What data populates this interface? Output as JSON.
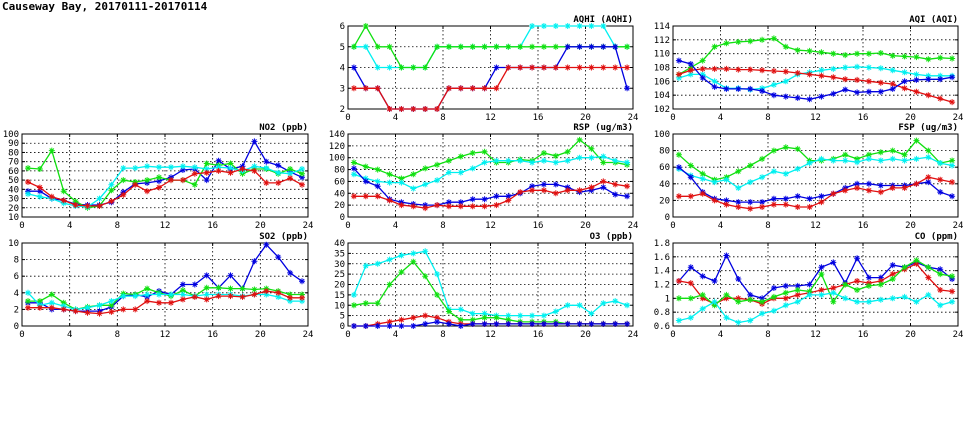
{
  "page_title": "Causeway Bay, 20170111-20170114",
  "colors": {
    "blue": "#0000e0",
    "green": "#10e010",
    "cyan": "#00f0f0",
    "red": "#e01010"
  },
  "chart_data": [
    {
      "id": "no2",
      "type": "line",
      "title": "NO2 (ppb)",
      "xlim": [
        0,
        24
      ],
      "xticks": [
        0,
        4,
        8,
        12,
        16,
        20,
        24
      ],
      "ylim": [
        10,
        100
      ],
      "yticks": [
        10,
        20,
        30,
        40,
        50,
        60,
        70,
        80,
        90,
        100
      ],
      "series": [
        {
          "color": "blue",
          "values": [
            38,
            38,
            30,
            28,
            24,
            23,
            23,
            26,
            37,
            46,
            47,
            49,
            53,
            61,
            62,
            50,
            71,
            62,
            65,
            92,
            70,
            66,
            59,
            53
          ]
        },
        {
          "color": "green",
          "values": [
            63,
            62,
            82,
            38,
            27,
            20,
            22,
            39,
            50,
            48,
            50,
            53,
            50,
            50,
            45,
            68,
            66,
            68,
            57,
            62,
            62,
            57,
            62,
            57
          ]
        },
        {
          "color": "cyan",
          "values": [
            35,
            32,
            30,
            25,
            22,
            21,
            30,
            45,
            63,
            63,
            65,
            64,
            64,
            65,
            64,
            62,
            64,
            63,
            60,
            65,
            63,
            58,
            57,
            62
          ]
        },
        {
          "color": "red",
          "values": [
            48,
            42,
            32,
            28,
            23,
            22,
            22,
            27,
            34,
            45,
            38,
            42,
            50,
            50,
            57,
            58,
            60,
            58,
            62,
            60,
            47,
            47,
            52,
            45
          ]
        }
      ]
    },
    {
      "id": "so2",
      "type": "line",
      "title": "SO2 (ppb)",
      "xlim": [
        0,
        24
      ],
      "xticks": [
        0,
        4,
        8,
        12,
        16,
        20,
        24
      ],
      "ylim": [
        0,
        10
      ],
      "yticks": [
        0,
        2,
        4,
        6,
        8,
        10
      ],
      "series": [
        {
          "color": "blue",
          "values": [
            2.8,
            2.8,
            2.0,
            2.0,
            1.8,
            1.8,
            1.8,
            2.3,
            3.6,
            3.8,
            3.5,
            4.2,
            3.8,
            5.0,
            5.0,
            6.1,
            4.6,
            6.1,
            4.5,
            7.8,
            9.8,
            8.3,
            6.4,
            5.4
          ]
        },
        {
          "color": "green",
          "values": [
            3.0,
            3.0,
            3.8,
            2.8,
            2.0,
            2.3,
            2.5,
            2.5,
            3.9,
            3.8,
            4.5,
            4.0,
            3.6,
            4.3,
            3.6,
            4.6,
            4.6,
            4.5,
            4.5,
            4.4,
            4.5,
            4.2,
            3.8,
            3.8
          ]
        },
        {
          "color": "cyan",
          "values": [
            4.0,
            2.5,
            2.8,
            2.4,
            2.0,
            2.2,
            2.5,
            3.0,
            3.6,
            3.6,
            3.8,
            3.8,
            3.8,
            3.8,
            3.6,
            3.8,
            3.8,
            3.8,
            3.6,
            3.8,
            3.8,
            3.5,
            3.0,
            3.0
          ]
        },
        {
          "color": "red",
          "values": [
            2.2,
            2.2,
            2.2,
            2.0,
            1.8,
            1.6,
            1.5,
            1.7,
            2.0,
            2.0,
            3.0,
            2.8,
            2.8,
            3.2,
            3.5,
            3.2,
            3.6,
            3.6,
            3.5,
            3.8,
            4.2,
            4.0,
            3.4,
            3.4
          ]
        }
      ]
    },
    {
      "id": "aqhi",
      "type": "line",
      "title": "AQHI (AQHI)",
      "xlim": [
        0,
        24
      ],
      "xticks": [
        0,
        4,
        8,
        12,
        16,
        20,
        24
      ],
      "ylim": [
        2,
        6
      ],
      "yticks": [
        2,
        3,
        4,
        5,
        6
      ],
      "series": [
        {
          "color": "cyan",
          "values": [
            5,
            5,
            4,
            4,
            4,
            4,
            4,
            5,
            5,
            5,
            5,
            5,
            5,
            5,
            5,
            6,
            6,
            6,
            6,
            6,
            6,
            6,
            5,
            5
          ]
        },
        {
          "color": "green",
          "values": [
            5,
            6,
            5,
            5,
            4,
            4,
            4,
            5,
            5,
            5,
            5,
            5,
            5,
            5,
            5,
            5,
            5,
            5,
            5,
            5,
            5,
            5,
            5,
            5
          ]
        },
        {
          "color": "blue",
          "values": [
            4,
            3,
            3,
            2,
            2,
            2,
            2,
            2,
            3,
            3,
            3,
            3,
            4,
            4,
            4,
            4,
            4,
            4,
            5,
            5,
            5,
            5,
            5,
            3
          ]
        },
        {
          "color": "red",
          "values": [
            3,
            3,
            3,
            2,
            2,
            2,
            2,
            2,
            3,
            3,
            3,
            3,
            3,
            4,
            4,
            4,
            4,
            4,
            4,
            4,
            4,
            4,
            4,
            4
          ]
        }
      ]
    },
    {
      "id": "rsp",
      "type": "line",
      "title": "RSP (ug/m3)",
      "xlim": [
        0,
        24
      ],
      "xticks": [
        0,
        4,
        8,
        12,
        16,
        20,
        24
      ],
      "ylim": [
        0,
        140
      ],
      "yticks": [
        0,
        20,
        40,
        60,
        80,
        100,
        120,
        140
      ],
      "series": [
        {
          "color": "green",
          "values": [
            92,
            85,
            80,
            72,
            65,
            72,
            82,
            88,
            95,
            102,
            108,
            110,
            92,
            92,
            97,
            95,
            108,
            103,
            110,
            130,
            115,
            92,
            92,
            88
          ]
        },
        {
          "color": "cyan",
          "values": [
            72,
            65,
            60,
            58,
            58,
            48,
            55,
            62,
            75,
            75,
            82,
            92,
            95,
            95,
            95,
            92,
            95,
            92,
            95,
            100,
            100,
            102,
            95,
            92
          ]
        },
        {
          "color": "blue",
          "values": [
            82,
            60,
            52,
            30,
            25,
            22,
            20,
            20,
            25,
            25,
            30,
            30,
            35,
            35,
            40,
            52,
            55,
            55,
            50,
            42,
            45,
            50,
            38,
            35
          ]
        },
        {
          "color": "red",
          "values": [
            35,
            35,
            35,
            28,
            20,
            18,
            15,
            20,
            18,
            18,
            18,
            18,
            20,
            28,
            42,
            45,
            45,
            40,
            45,
            45,
            50,
            60,
            55,
            52
          ]
        }
      ]
    },
    {
      "id": "o3",
      "type": "line",
      "title": "O3 (ppb)",
      "xlim": [
        0,
        24
      ],
      "xticks": [
        0,
        4,
        8,
        12,
        16,
        20,
        24
      ],
      "ylim": [
        0,
        40
      ],
      "yticks": [
        0,
        5,
        10,
        15,
        20,
        25,
        30,
        35,
        40
      ],
      "series": [
        {
          "color": "cyan",
          "values": [
            15,
            29,
            30,
            32,
            34,
            35,
            36,
            25,
            8,
            8,
            6,
            6,
            5,
            5,
            5,
            5,
            5,
            7,
            10,
            10,
            6,
            11,
            12,
            10
          ]
        },
        {
          "color": "green",
          "values": [
            10,
            11,
            11,
            20,
            26,
            31,
            24,
            15,
            7,
            3,
            3,
            4,
            4,
            3,
            2,
            2,
            2,
            2,
            1,
            1,
            1,
            1,
            1,
            1
          ]
        },
        {
          "color": "red",
          "values": [
            0,
            0,
            1,
            2,
            3,
            4,
            5,
            4,
            2,
            1,
            1,
            1,
            1,
            1,
            1,
            1,
            1,
            1,
            1,
            1,
            1,
            1,
            1,
            1
          ]
        },
        {
          "color": "blue",
          "values": [
            0,
            0,
            0,
            0,
            0,
            0,
            1,
            2,
            1,
            0,
            1,
            1,
            1,
            1,
            1,
            1,
            1,
            1,
            1,
            1,
            1,
            1,
            1,
            1
          ]
        }
      ]
    },
    {
      "id": "aqi",
      "type": "line",
      "title": "AQI (AQI)",
      "xlim": [
        0,
        24
      ],
      "xticks": [
        0,
        4,
        8,
        12,
        16,
        20,
        24
      ],
      "ylim": [
        102,
        114
      ],
      "yticks": [
        102,
        104,
        106,
        108,
        110,
        112,
        114
      ],
      "series": [
        {
          "color": "green",
          "values": [
            107,
            108,
            109,
            111,
            111.5,
            111.7,
            111.8,
            112,
            112.2,
            111,
            110.5,
            110.4,
            110.2,
            110,
            109.8,
            110,
            110,
            110.1,
            109.7,
            109.6,
            109.5,
            109.2,
            109.4,
            109.3
          ]
        },
        {
          "color": "cyan",
          "values": [
            106.5,
            107,
            107,
            106,
            105,
            105,
            104.8,
            105,
            105.5,
            106,
            107,
            107.3,
            107.6,
            107.8,
            108,
            108.1,
            108,
            107.9,
            107.6,
            107.3,
            107,
            106.8,
            106.8,
            106.8
          ]
        },
        {
          "color": "red",
          "values": [
            107,
            107.6,
            107.8,
            107.8,
            107.8,
            107.7,
            107.7,
            107.6,
            107.5,
            107.4,
            107.2,
            107,
            106.8,
            106.6,
            106.3,
            106.2,
            106,
            105.8,
            105.6,
            105,
            104.5,
            104,
            103.5,
            103
          ]
        },
        {
          "color": "blue",
          "values": [
            109,
            108.5,
            106.5,
            105.2,
            104.9,
            104.9,
            104.9,
            104.6,
            104,
            103.8,
            103.6,
            103.4,
            103.8,
            104.2,
            104.8,
            104.4,
            104.5,
            104.5,
            104.9,
            106,
            106.2,
            106.3,
            106.3,
            106.6
          ]
        }
      ]
    },
    {
      "id": "fsp",
      "type": "line",
      "title": "FSP (ug/m3)",
      "xlim": [
        0,
        24
      ],
      "xticks": [
        0,
        4,
        8,
        12,
        16,
        20,
        24
      ],
      "ylim": [
        0,
        100
      ],
      "yticks": [
        0,
        20,
        40,
        60,
        80,
        100
      ],
      "series": [
        {
          "color": "green",
          "values": [
            75,
            62,
            52,
            45,
            48,
            55,
            62,
            70,
            80,
            84,
            82,
            68,
            68,
            70,
            75,
            70,
            75,
            78,
            80,
            75,
            92,
            80,
            65,
            68
          ]
        },
        {
          "color": "cyan",
          "values": [
            58,
            50,
            46,
            42,
            45,
            35,
            42,
            48,
            55,
            52,
            58,
            65,
            70,
            68,
            68,
            66,
            70,
            68,
            70,
            68,
            70,
            72,
            65,
            62
          ]
        },
        {
          "color": "blue",
          "values": [
            60,
            48,
            30,
            22,
            20,
            18,
            18,
            18,
            22,
            22,
            25,
            22,
            25,
            28,
            35,
            40,
            40,
            38,
            38,
            38,
            40,
            42,
            30,
            25
          ]
        },
        {
          "color": "red",
          "values": [
            25,
            25,
            28,
            20,
            15,
            12,
            10,
            12,
            15,
            15,
            12,
            12,
            18,
            28,
            32,
            35,
            32,
            30,
            35,
            35,
            40,
            48,
            45,
            42
          ]
        }
      ]
    },
    {
      "id": "co",
      "type": "line",
      "title": "CO (ppm)",
      "xlim": [
        0,
        24
      ],
      "xticks": [
        0,
        4,
        8,
        12,
        16,
        20,
        24
      ],
      "ylim": [
        0.6,
        1.8
      ],
      "yticks": [
        0.6,
        0.8,
        1.0,
        1.2,
        1.4,
        1.6,
        1.8
      ],
      "series": [
        {
          "color": "blue",
          "values": [
            1.25,
            1.45,
            1.32,
            1.25,
            1.62,
            1.28,
            1.05,
            1.0,
            1.15,
            1.18,
            1.18,
            1.2,
            1.45,
            1.52,
            1.22,
            1.58,
            1.3,
            1.3,
            1.48,
            1.45,
            1.52,
            1.45,
            1.42,
            1.28
          ]
        },
        {
          "color": "red",
          "values": [
            1.25,
            1.22,
            1.0,
            0.92,
            1.0,
            1.0,
            0.98,
            0.92,
            1.0,
            1.0,
            1.05,
            1.08,
            1.12,
            1.15,
            1.2,
            1.25,
            1.22,
            1.25,
            1.35,
            1.42,
            1.5,
            1.3,
            1.12,
            1.1
          ]
        },
        {
          "color": "green",
          "values": [
            1.0,
            1.0,
            1.05,
            0.9,
            1.05,
            0.95,
            0.98,
            0.95,
            1.02,
            1.08,
            1.12,
            1.1,
            1.35,
            0.95,
            1.2,
            1.12,
            1.18,
            1.2,
            1.28,
            1.45,
            1.55,
            1.45,
            1.35,
            1.32
          ]
        },
        {
          "color": "cyan",
          "values": [
            0.68,
            0.72,
            0.85,
            0.95,
            0.72,
            0.65,
            0.68,
            0.78,
            0.82,
            0.9,
            0.95,
            1.05,
            1.05,
            1.08,
            1.0,
            0.95,
            0.95,
            0.98,
            1.0,
            1.02,
            0.95,
            1.05,
            0.9,
            0.95
          ]
        }
      ]
    }
  ]
}
